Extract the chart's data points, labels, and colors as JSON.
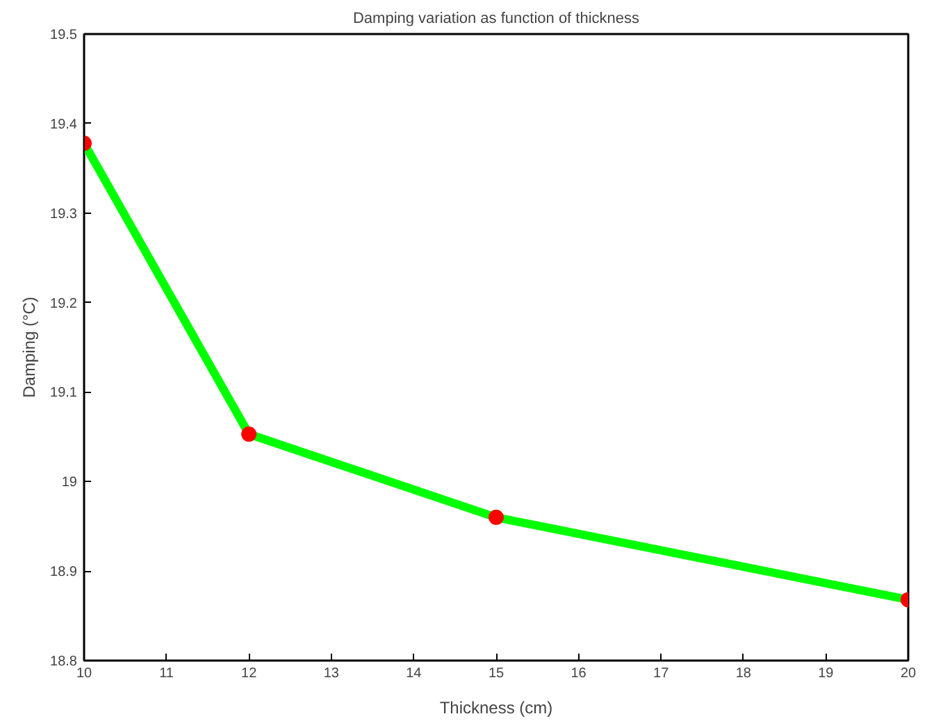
{
  "chart_data": {
    "type": "line",
    "title": "Damping variation as function of thickness",
    "xlabel": "Thickness (cm)",
    "ylabel": "Damping (°C)",
    "x": [
      10,
      12,
      15,
      20
    ],
    "series": [
      {
        "color": "#00ff00",
        "colors": [
          "#ff0000",
          "#ff0000",
          "#ff0000",
          "#ff0000"
        ],
        "values": [
          19.378,
          19.053,
          18.96,
          18.868
        ]
      }
    ],
    "marker": "circle",
    "line_style": "solid",
    "xlim": [
      10,
      20
    ],
    "xticks": [
      10,
      11,
      12,
      13,
      14,
      15,
      16,
      17,
      18,
      19,
      20
    ],
    "ylim": [
      18.8,
      19.5
    ],
    "yticks": [
      18.8,
      18.9,
      19,
      19.1,
      19.2,
      19.3,
      19.4,
      19.5
    ]
  }
}
